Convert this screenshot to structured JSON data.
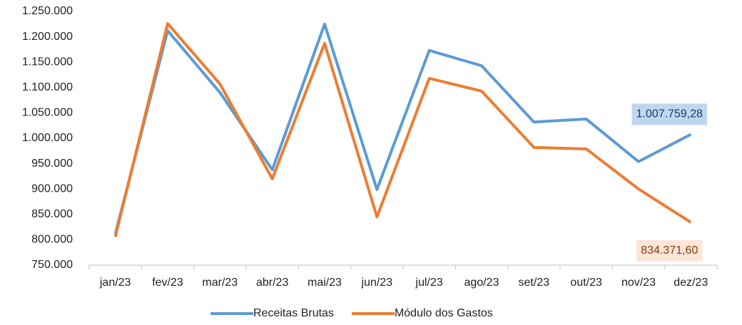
{
  "chart_data": {
    "type": "line",
    "categories": [
      "jan/23",
      "fev/23",
      "mar/23",
      "abr/23",
      "mai/23",
      "jun/23",
      "jul/23",
      "ago/23",
      "set/23",
      "out/23",
      "nov/23",
      "dez/23"
    ],
    "series": [
      {
        "name": "Receitas Brutas",
        "color": "#5b9bd5",
        "values": [
          812000,
          1212000,
          1090000,
          938000,
          1225000,
          899000,
          1173000,
          1143000,
          1032000,
          1038000,
          954000,
          1007759.28
        ],
        "value_labels": [
          null,
          null,
          null,
          null,
          null,
          null,
          null,
          null,
          null,
          null,
          null,
          "1.007.759,28"
        ]
      },
      {
        "name": "Módulo dos Gastos",
        "color": "#ed7d31",
        "values": [
          806000,
          1226000,
          1107000,
          920000,
          1187000,
          845000,
          1118000,
          1093000,
          982000,
          979000,
          900000,
          834371.6
        ],
        "value_labels": [
          null,
          null,
          null,
          null,
          null,
          null,
          null,
          null,
          null,
          null,
          null,
          "834.371,60"
        ]
      }
    ],
    "ylim": [
      750000,
      1250000
    ],
    "yticks": [
      {
        "value": 750000,
        "label": "750.000"
      },
      {
        "value": 800000,
        "label": "800.000"
      },
      {
        "value": 850000,
        "label": "850.000"
      },
      {
        "value": 900000,
        "label": "900.000"
      },
      {
        "value": 950000,
        "label": "950.000"
      },
      {
        "value": 1000000,
        "label": "1.000.000"
      },
      {
        "value": 1050000,
        "label": "1.050.000"
      },
      {
        "value": 1100000,
        "label": "1.100.000"
      },
      {
        "value": 1150000,
        "label": "1.150.000"
      },
      {
        "value": 1200000,
        "label": "1.200.000"
      },
      {
        "value": 1250000,
        "label": "1.250.000"
      }
    ],
    "grid": false,
    "legend": "bottom"
  }
}
